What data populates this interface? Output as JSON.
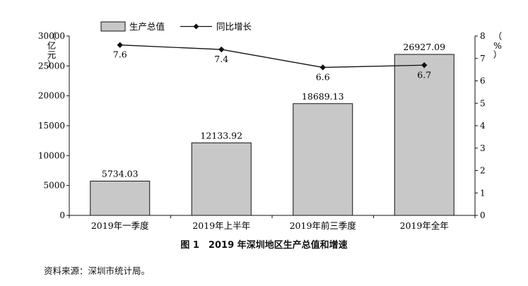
{
  "chart_data": {
    "type": "bar",
    "title": "图 1　2019 年深圳地区生产总值和增速",
    "categories": [
      "2019年一季度",
      "2019年上半年",
      "2019年前三季度",
      "2019年全年"
    ],
    "series": [
      {
        "name": "生产总值",
        "type": "bar",
        "axis": "left",
        "values": [
          5734.03,
          12133.92,
          18689.13,
          26927.09
        ],
        "labels": [
          "5734.03",
          "12133.92",
          "18689.13",
          "26927.09"
        ]
      },
      {
        "name": "同比增长",
        "type": "line",
        "axis": "right",
        "values": [
          7.6,
          7.4,
          6.6,
          6.7
        ],
        "labels": [
          "7.6",
          "7.4",
          "6.6",
          "6.7"
        ]
      }
    ],
    "ylabel_left": "（亿元）",
    "ylabel_right": "（%）",
    "ylim_left": [
      0,
      30000
    ],
    "ylim_right": [
      0,
      8
    ],
    "yticks_left": [
      "0",
      "5000",
      "10000",
      "15000",
      "20000",
      "25000",
      "30000"
    ],
    "yticks_right": [
      "0",
      "1",
      "2",
      "3",
      "4",
      "5",
      "6",
      "7",
      "8"
    ],
    "legend_position": "top-left",
    "bar_color": "#c8c8c8",
    "line_color": "#111111"
  },
  "caption": "图 1　2019 年深圳地区生产总值和增速",
  "source": "资料来源：深圳市统计局。"
}
